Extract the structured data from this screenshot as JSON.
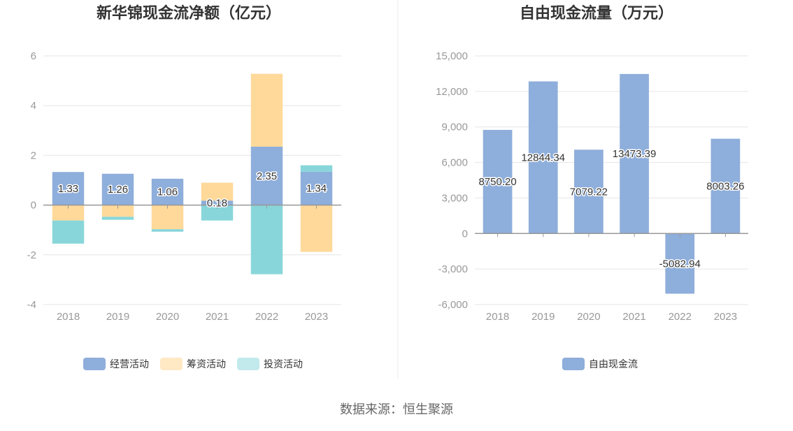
{
  "source": "数据来源：恒生聚源",
  "colors": {
    "operating": "#8eaedb",
    "financing": "#ffd99a",
    "investing": "#88d6da",
    "free_cash_flow": "#8eaedb",
    "legend_financing": "#ffe9c4",
    "legend_investing": "#c2e9ec"
  },
  "chart_data": [
    {
      "type": "bar",
      "stacked": true,
      "title": "新华锦现金流净额（亿元）",
      "categories": [
        "2018",
        "2019",
        "2020",
        "2021",
        "2022",
        "2023"
      ],
      "ylim": [
        -4,
        6
      ],
      "yticks": [
        "6",
        "4",
        "2",
        "0",
        "-2",
        "-4"
      ],
      "ytick_values": [
        6,
        4,
        2,
        0,
        -2,
        -4
      ],
      "grid": true,
      "legend_position": "bottom",
      "series": [
        {
          "name": "经营活动",
          "color": "#8eaedb",
          "values": [
            1.33,
            1.26,
            1.06,
            0.18,
            2.35,
            1.34
          ],
          "labels": [
            "1.33",
            "1.26",
            "1.06",
            "0.18",
            "2.35",
            "1.34"
          ]
        },
        {
          "name": "筹资活动",
          "color": "#ffd99a",
          "values": [
            -0.62,
            -0.47,
            -0.97,
            0.72,
            2.93,
            -1.88
          ]
        },
        {
          "name": "投资活动",
          "color": "#88d6da",
          "values": [
            -0.93,
            -0.12,
            -0.1,
            -0.62,
            -2.78,
            0.26
          ]
        }
      ]
    },
    {
      "type": "bar",
      "title": "自由现金流量（万元）",
      "categories": [
        "2018",
        "2019",
        "2020",
        "2021",
        "2022",
        "2023"
      ],
      "ylim": [
        -6000,
        15000
      ],
      "yticks": [
        "15,000",
        "12,000",
        "9,000",
        "6,000",
        "3,000",
        "0",
        "-3,000",
        "-6,000"
      ],
      "ytick_values": [
        15000,
        12000,
        9000,
        6000,
        3000,
        0,
        -3000,
        -6000
      ],
      "grid": true,
      "legend_position": "bottom",
      "series": [
        {
          "name": "自由现金流",
          "color": "#8eaedb",
          "values": [
            8750.2,
            12844.34,
            7079.22,
            13473.39,
            -5082.94,
            8003.26
          ],
          "labels": [
            "8750.20",
            "12844.34",
            "7079.22",
            "13473.39",
            "-5082.94",
            "8003.26"
          ]
        }
      ]
    }
  ]
}
